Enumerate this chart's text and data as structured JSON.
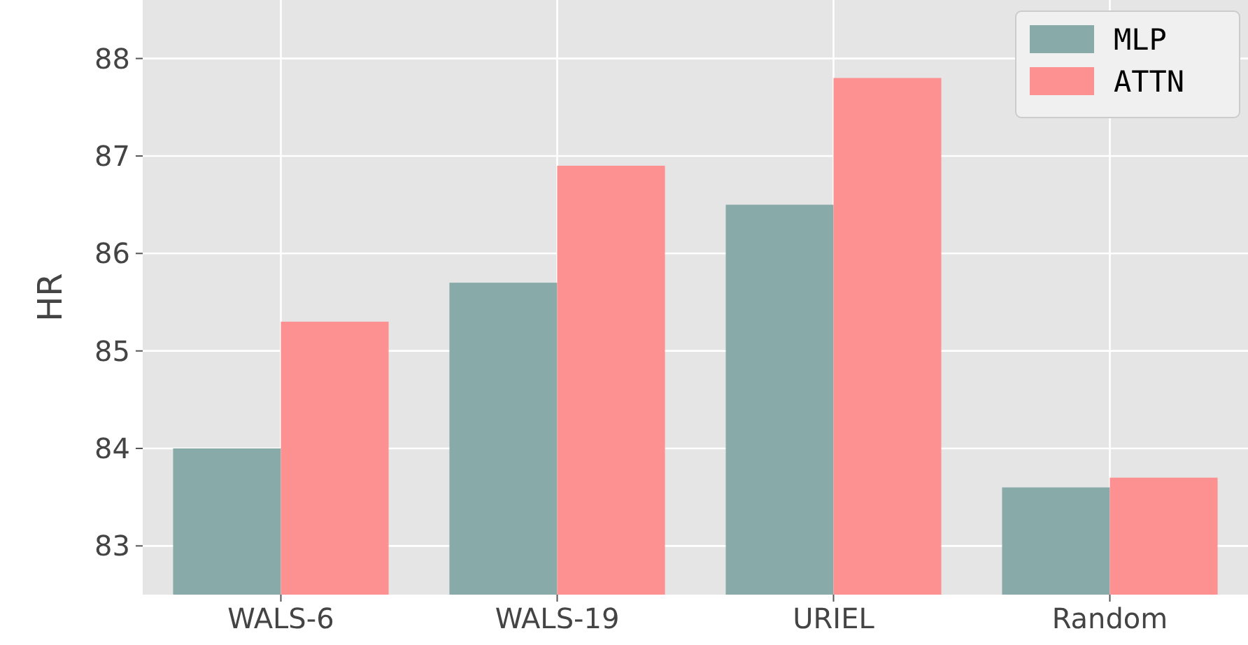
{
  "chart_data": {
    "type": "bar",
    "ylabel": "HR",
    "categories": [
      "WALS-6",
      "WALS-19",
      "URIEL",
      "Random"
    ],
    "series": [
      {
        "name": "MLP",
        "color": "#88aaa8",
        "values": [
          84.0,
          85.7,
          86.5,
          83.6
        ]
      },
      {
        "name": "ATTN",
        "color": "#fd9191",
        "values": [
          85.3,
          86.9,
          87.8,
          83.7
        ]
      }
    ],
    "ylim": [
      82.5,
      88.6
    ],
    "yticks": [
      83,
      84,
      85,
      86,
      87,
      88
    ],
    "grid": true,
    "legend": "top right"
  }
}
